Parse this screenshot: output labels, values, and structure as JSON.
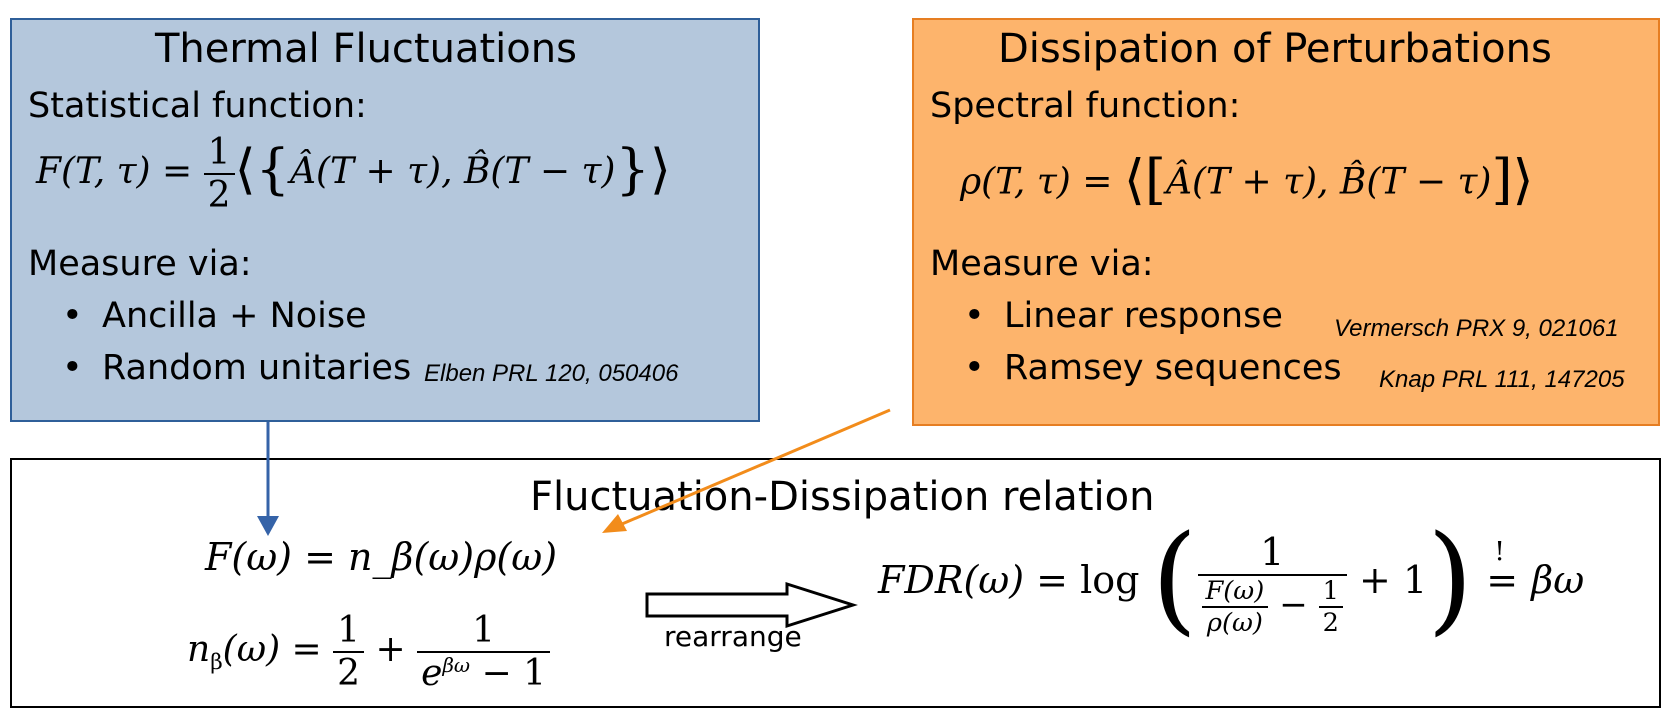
{
  "thermal": {
    "title": "Thermal Fluctuations",
    "function_label": "Statistical function:",
    "formula": {
      "lhs": "F(T, τ) = ",
      "frac_num": "1",
      "frac_den": "2",
      "open": "⟨{",
      "inner": "Â(T + τ), B̂(T − τ)",
      "close": "}⟩"
    },
    "measure_label": "Measure via:",
    "bullets": [
      "Ancilla + Noise",
      "Random unitaries"
    ],
    "reference": "Elben PRL 120, 050406"
  },
  "dissipation": {
    "title": "Dissipation of Perturbations",
    "function_label": "Spectral function:",
    "formula": {
      "lhs": "ρ(T, τ) = ",
      "open": "⟨[",
      "inner": "Â(T + τ), B̂(T − τ)",
      "close": "]⟩"
    },
    "measure_label": "Measure via:",
    "bullets": [
      "Linear response",
      "Ramsey sequences"
    ],
    "references": [
      "Vermersch PRX 9, 021061",
      "Knap PRL 111, 147205"
    ]
  },
  "fdr": {
    "title": "Fluctuation-Dissipation relation",
    "eq1": "F(ω) = n_β(ω)ρ(ω)",
    "eq2": {
      "lhs": "n",
      "lhs_sub": "β",
      "lhs_arg": "(ω) = ",
      "half_num": "1",
      "half_den": "2",
      "plus": " + ",
      "frac_num": "1",
      "frac_den_base": "e",
      "frac_den_sup": "βω",
      "frac_den_tail": " − 1"
    },
    "arrow_label": "rearrange",
    "eq3": {
      "lhs": "FDR(ω) = ",
      "log": "log",
      "one": "1",
      "inner_num": "F(ω)",
      "inner_den": "ρ(ω)",
      "minus": " − ",
      "half_num": "1",
      "half_den": "2",
      "plus_one": " + 1",
      "bang": "!",
      "rhs": "βω"
    }
  },
  "colors": {
    "blue_fill": "#b4c7dc",
    "blue_border": "#2f5f99",
    "orange_fill": "#fdb46c",
    "orange_border": "#e67e22",
    "blue_arrow": "#3563a8",
    "orange_arrow": "#f28c1b"
  }
}
